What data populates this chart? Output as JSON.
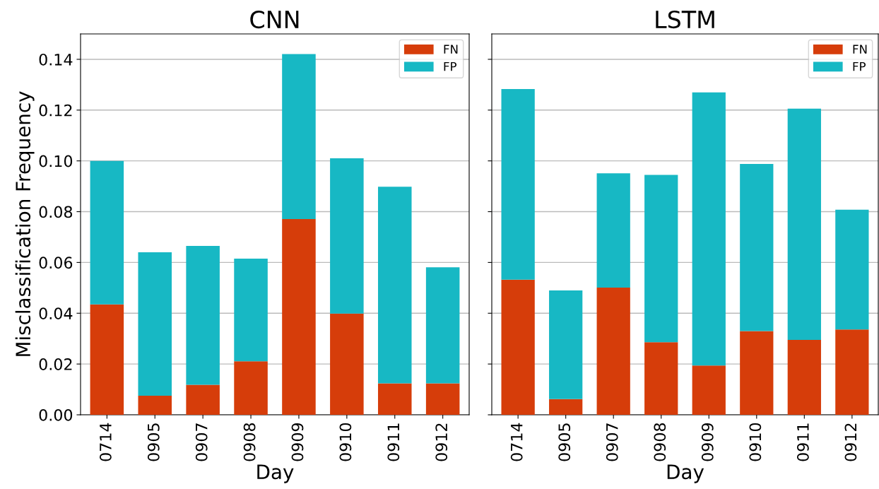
{
  "chart_data": [
    {
      "type": "bar",
      "stacked": true,
      "title": "CNN",
      "xlabel": "Day",
      "ylabel": "Misclassification Frequency",
      "categories": [
        "0714",
        "0905",
        "0907",
        "0908",
        "0909",
        "0910",
        "0911",
        "0912"
      ],
      "series": [
        {
          "name": "FN",
          "color": "#d63d0a",
          "values": [
            0.0435,
            0.0075,
            0.0118,
            0.0211,
            0.0771,
            0.0399,
            0.0124,
            0.0124
          ]
        },
        {
          "name": "FP",
          "color": "#17b8c4",
          "values": [
            0.0565,
            0.0565,
            0.0547,
            0.0404,
            0.065,
            0.0611,
            0.0774,
            0.0457
          ]
        }
      ],
      "ylim": [
        0,
        0.15
      ],
      "yticks": [
        {
          "value": 0,
          "label": "0.00"
        },
        {
          "value": 0.02,
          "label": "0.02"
        },
        {
          "value": 0.04,
          "label": "0.04"
        },
        {
          "value": 0.06,
          "label": "0.06"
        },
        {
          "value": 0.08,
          "label": "0.08"
        },
        {
          "value": 0.1,
          "label": "0.10"
        },
        {
          "value": 0.12,
          "label": "0.12"
        },
        {
          "value": 0.14,
          "label": "0.14"
        }
      ],
      "grid": "y",
      "legend": "top right"
    },
    {
      "type": "bar",
      "stacked": true,
      "title": "LSTM",
      "xlabel": "Day",
      "categories": [
        "0714",
        "0905",
        "0907",
        "0908",
        "0909",
        "0910",
        "0911",
        "0912"
      ],
      "series": [
        {
          "name": "FN",
          "color": "#d63d0a",
          "values": [
            0.0532,
            0.0062,
            0.0501,
            0.0286,
            0.0194,
            0.033,
            0.0295,
            0.0336
          ]
        },
        {
          "name": "FP",
          "color": "#17b8c4",
          "values": [
            0.0751,
            0.0428,
            0.045,
            0.0659,
            0.1076,
            0.0658,
            0.0911,
            0.0472
          ]
        }
      ],
      "ylim": [
        0,
        0.15
      ],
      "yticks": [
        0,
        0.02,
        0.04,
        0.06,
        0.08,
        0.1,
        0.12,
        0.14
      ],
      "grid": "y",
      "legend": "top right",
      "tick_labels": "x"
    }
  ]
}
